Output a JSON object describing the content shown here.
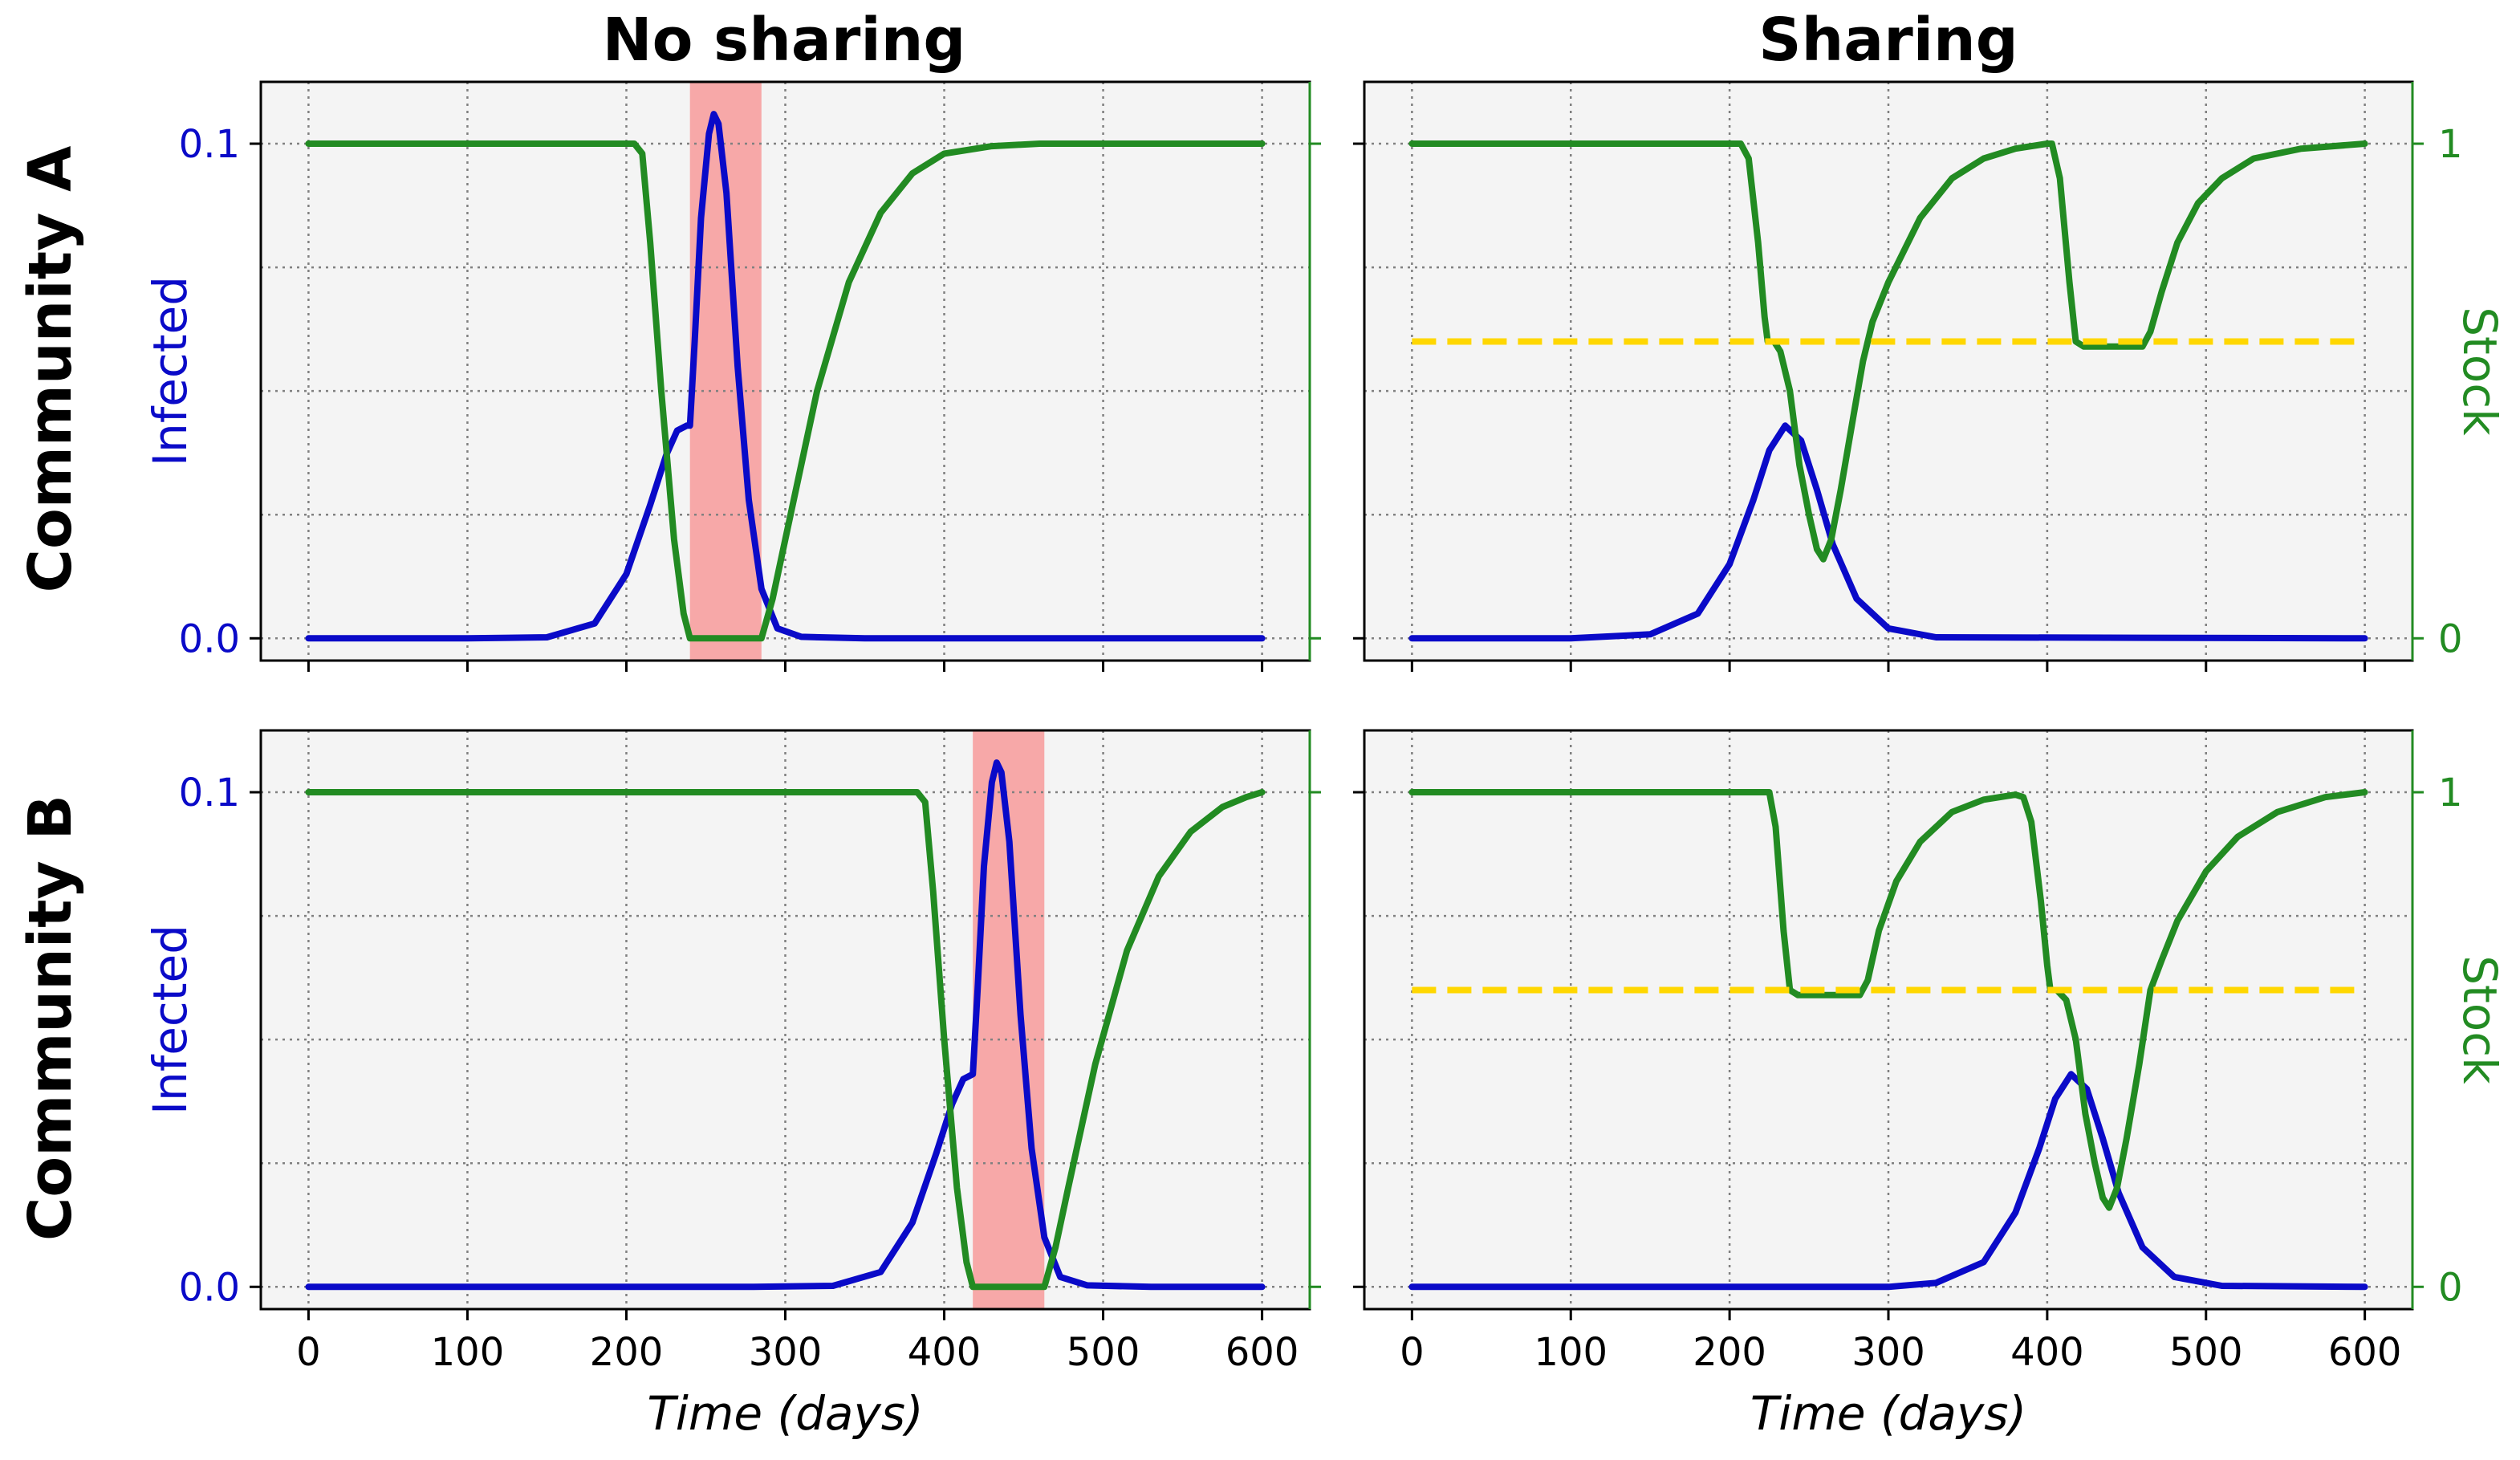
{
  "figure": {
    "column_titles": [
      "No sharing",
      "Sharing"
    ],
    "row_titles": [
      "Community A",
      "Community B"
    ],
    "colors": {
      "infected": "#0a0ac8",
      "stock": "#228b22",
      "threshold": "#ffd700",
      "shortage": "#f7a8a8",
      "background": "#f4f4f4"
    }
  },
  "chart_data": [
    {
      "type": "line",
      "panel": "Community A / No sharing",
      "title": "No sharing",
      "xlabel": "",
      "ylabel": "Infected",
      "xlim": [
        -30,
        630
      ],
      "ylim": [
        -0.0045,
        0.1125
      ],
      "x_ticks": [
        0,
        100,
        200,
        300,
        400,
        500,
        600
      ],
      "y_ticks": [
        0.0,
        0.1
      ],
      "y_tick_labels": [
        "0.0",
        "0.1"
      ],
      "grid": true,
      "shaded_region": [
        240,
        285
      ],
      "series": [
        {
          "axis": "left",
          "values": [
            [
              0,
              0
            ],
            [
              100,
              0
            ],
            [
              150,
              0.0002
            ],
            [
              180,
              0.003
            ],
            [
              200,
              0.013
            ],
            [
              215,
              0.027
            ],
            [
              225,
              0.037
            ],
            [
              232,
              0.042
            ],
            [
              238,
              0.043
            ],
            [
              240,
              0.043
            ],
            [
              243,
              0.06
            ],
            [
              247,
              0.085
            ],
            [
              252,
              0.102
            ],
            [
              255,
              0.106
            ],
            [
              258,
              0.104
            ],
            [
              263,
              0.09
            ],
            [
              270,
              0.055
            ],
            [
              277,
              0.028
            ],
            [
              285,
              0.01
            ],
            [
              295,
              0.002
            ],
            [
              310,
              0.0003
            ],
            [
              350,
              0
            ],
            [
              600,
              0
            ]
          ]
        },
        {
          "axis": "right",
          "values": [
            [
              0,
              1
            ],
            [
              205,
              1
            ],
            [
              210,
              0.98
            ],
            [
              215,
              0.8
            ],
            [
              222,
              0.5
            ],
            [
              230,
              0.2
            ],
            [
              236,
              0.05
            ],
            [
              240,
              0
            ],
            [
              285,
              0
            ],
            [
              292,
              0.08
            ],
            [
              300,
              0.2
            ],
            [
              320,
              0.5
            ],
            [
              340,
              0.72
            ],
            [
              360,
              0.86
            ],
            [
              380,
              0.94
            ],
            [
              400,
              0.98
            ],
            [
              430,
              0.995
            ],
            [
              460,
              1
            ],
            [
              600,
              1
            ]
          ]
        }
      ]
    },
    {
      "type": "line",
      "panel": "Community A / Sharing",
      "title": "Sharing",
      "xlabel": "",
      "ylabel": "Stock",
      "xlim": [
        -30,
        630
      ],
      "ylim": [
        -0.045,
        1.125
      ],
      "x_ticks": [
        0,
        100,
        200,
        300,
        400,
        500,
        600
      ],
      "y_ticks": [
        0,
        1
      ],
      "y_tick_labels": [
        "0",
        "1"
      ],
      "grid": true,
      "series": [
        {
          "axis": "left",
          "values": [
            [
              0,
              0
            ],
            [
              100,
              0
            ],
            [
              150,
              0.0008
            ],
            [
              180,
              0.005
            ],
            [
              200,
              0.015
            ],
            [
              215,
              0.028
            ],
            [
              225,
              0.038
            ],
            [
              235,
              0.043
            ],
            [
              245,
              0.04
            ],
            [
              255,
              0.03
            ],
            [
              265,
              0.019
            ],
            [
              280,
              0.008
            ],
            [
              300,
              0.002
            ],
            [
              330,
              0.0002
            ],
            [
              600,
              0
            ]
          ]
        },
        {
          "axis": "right",
          "values": [
            [
              0,
              1
            ],
            [
              207,
              1
            ],
            [
              212,
              0.97
            ],
            [
              218,
              0.8
            ],
            [
              222,
              0.65
            ],
            [
              224,
              0.6
            ],
            [
              228,
              0.6
            ],
            [
              232,
              0.58
            ],
            [
              238,
              0.5
            ],
            [
              244,
              0.35
            ],
            [
              250,
              0.25
            ],
            [
              255,
              0.18
            ],
            [
              259,
              0.16
            ],
            [
              264,
              0.2
            ],
            [
              270,
              0.3
            ],
            [
              278,
              0.45
            ],
            [
              284,
              0.56
            ],
            [
              290,
              0.64
            ],
            [
              300,
              0.72
            ],
            [
              320,
              0.85
            ],
            [
              340,
              0.93
            ],
            [
              360,
              0.97
            ],
            [
              380,
              0.99
            ],
            [
              400,
              1
            ],
            [
              403,
              1
            ],
            [
              408,
              0.93
            ],
            [
              414,
              0.72
            ],
            [
              418,
              0.6
            ],
            [
              423,
              0.59
            ],
            [
              460,
              0.59
            ],
            [
              465,
              0.62
            ],
            [
              472,
              0.7
            ],
            [
              482,
              0.8
            ],
            [
              495,
              0.88
            ],
            [
              510,
              0.93
            ],
            [
              530,
              0.97
            ],
            [
              560,
              0.99
            ],
            [
              600,
              1
            ]
          ]
        },
        {
          "axis": "right",
          "dashed": true,
          "values": [
            [
              0,
              0.6
            ],
            [
              600,
              0.6
            ]
          ]
        }
      ]
    },
    {
      "type": "line",
      "panel": "Community B / No sharing",
      "title": "",
      "xlabel": "Time (days)",
      "ylabel": "Infected",
      "xlim": [
        -30,
        630
      ],
      "ylim": [
        -0.0045,
        0.1125
      ],
      "x_ticks": [
        0,
        100,
        200,
        300,
        400,
        500,
        600
      ],
      "x_tick_labels": [
        "0",
        "100",
        "200",
        "300",
        "400",
        "500",
        "600"
      ],
      "y_ticks": [
        0.0,
        0.1
      ],
      "y_tick_labels": [
        "0.0",
        "0.1"
      ],
      "grid": true,
      "shaded_region": [
        418,
        463
      ],
      "series": [
        {
          "axis": "left",
          "values": [
            [
              0,
              0
            ],
            [
              280,
              0
            ],
            [
              330,
              0.0002
            ],
            [
              360,
              0.003
            ],
            [
              380,
              0.013
            ],
            [
              395,
              0.027
            ],
            [
              405,
              0.037
            ],
            [
              412,
              0.042
            ],
            [
              418,
              0.043
            ],
            [
              421,
              0.06
            ],
            [
              425,
              0.085
            ],
            [
              430,
              0.102
            ],
            [
              433,
              0.106
            ],
            [
              436,
              0.104
            ],
            [
              441,
              0.09
            ],
            [
              448,
              0.055
            ],
            [
              455,
              0.028
            ],
            [
              463,
              0.01
            ],
            [
              473,
              0.002
            ],
            [
              490,
              0.0003
            ],
            [
              530,
              0
            ],
            [
              600,
              0
            ]
          ]
        },
        {
          "axis": "right",
          "values": [
            [
              0,
              1
            ],
            [
              383,
              1
            ],
            [
              388,
              0.98
            ],
            [
              393,
              0.8
            ],
            [
              400,
              0.5
            ],
            [
              408,
              0.2
            ],
            [
              414,
              0.05
            ],
            [
              418,
              0
            ],
            [
              463,
              0
            ],
            [
              470,
              0.08
            ],
            [
              478,
              0.2
            ],
            [
              495,
              0.45
            ],
            [
              515,
              0.68
            ],
            [
              535,
              0.83
            ],
            [
              555,
              0.92
            ],
            [
              575,
              0.97
            ],
            [
              590,
              0.99
            ],
            [
              600,
              1
            ]
          ]
        }
      ]
    },
    {
      "type": "line",
      "panel": "Community B / Sharing",
      "title": "",
      "xlabel": "Time (days)",
      "ylabel": "Stock",
      "xlim": [
        -30,
        630
      ],
      "ylim": [
        -0.045,
        1.125
      ],
      "x_ticks": [
        0,
        100,
        200,
        300,
        400,
        500,
        600
      ],
      "x_tick_labels": [
        "0",
        "100",
        "200",
        "300",
        "400",
        "500",
        "600"
      ],
      "y_ticks": [
        0,
        1
      ],
      "y_tick_labels": [
        "0",
        "1"
      ],
      "grid": true,
      "series": [
        {
          "axis": "left",
          "values": [
            [
              0,
              0
            ],
            [
              300,
              0
            ],
            [
              330,
              0.0008
            ],
            [
              360,
              0.005
            ],
            [
              380,
              0.015
            ],
            [
              395,
              0.028
            ],
            [
              405,
              0.038
            ],
            [
              415,
              0.043
            ],
            [
              425,
              0.04
            ],
            [
              435,
              0.03
            ],
            [
              445,
              0.019
            ],
            [
              460,
              0.008
            ],
            [
              480,
              0.002
            ],
            [
              510,
              0.0002
            ],
            [
              600,
              0
            ]
          ]
        },
        {
          "axis": "right",
          "values": [
            [
              0,
              1
            ],
            [
              225,
              1
            ],
            [
              229,
              0.93
            ],
            [
              234,
              0.72
            ],
            [
              238,
              0.6
            ],
            [
              243,
              0.59
            ],
            [
              282,
              0.59
            ],
            [
              287,
              0.62
            ],
            [
              294,
              0.72
            ],
            [
              305,
              0.82
            ],
            [
              320,
              0.9
            ],
            [
              340,
              0.96
            ],
            [
              360,
              0.985
            ],
            [
              380,
              0.995
            ],
            [
              385,
              0.99
            ],
            [
              390,
              0.94
            ],
            [
              396,
              0.78
            ],
            [
              400,
              0.65
            ],
            [
              402,
              0.6
            ],
            [
              406,
              0.6
            ],
            [
              412,
              0.58
            ],
            [
              418,
              0.5
            ],
            [
              424,
              0.35
            ],
            [
              430,
              0.25
            ],
            [
              435,
              0.18
            ],
            [
              439,
              0.16
            ],
            [
              444,
              0.2
            ],
            [
              450,
              0.3
            ],
            [
              458,
              0.45
            ],
            [
              465,
              0.6
            ],
            [
              472,
              0.66
            ],
            [
              482,
              0.74
            ],
            [
              500,
              0.84
            ],
            [
              520,
              0.91
            ],
            [
              545,
              0.96
            ],
            [
              575,
              0.99
            ],
            [
              600,
              1
            ]
          ]
        },
        {
          "axis": "right",
          "dashed": true,
          "values": [
            [
              0,
              0.6
            ],
            [
              600,
              0.6
            ]
          ]
        }
      ]
    }
  ]
}
